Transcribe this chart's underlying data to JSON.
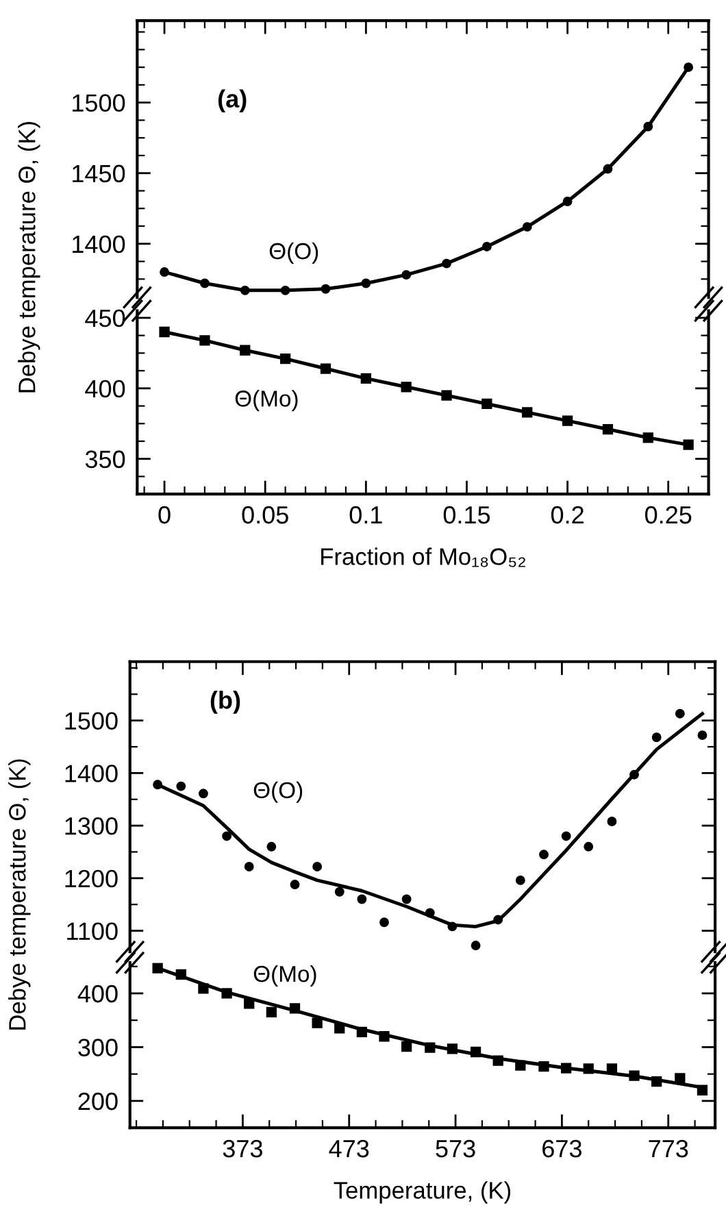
{
  "chart_data": [
    {
      "type": "line",
      "ylabel": "Debye temperature Θ, (K)",
      "tick_labels": "y",
      "marker": "circle",
      "line_style": "solid",
      "grid": false,
      "legend": false,
      "annotations": [
        "(a)",
        "Θ(O)"
      ],
      "x": [
        0,
        0.02,
        0.04,
        0.06,
        0.08,
        0.1,
        0.12,
        0.14,
        0.16,
        0.18,
        0.2,
        0.22,
        0.24,
        0.26
      ],
      "series": [
        {
          "color": "#000000",
          "values": [
            1380,
            1372,
            1367,
            1367,
            1368,
            1372,
            1378,
            1386,
            1398,
            1412,
            1430,
            1453,
            1483,
            1525
          ]
        }
      ],
      "xlim": [
        -0.0135,
        0.27
      ],
      "ylim": [
        1362,
        1558
      ],
      "xticks": [
        {
          "value": -0.01,
          "label": null
        },
        0,
        {
          "value": 0.01,
          "label": null
        },
        {
          "value": 0.02,
          "label": null
        },
        {
          "value": 0.03,
          "label": null
        },
        {
          "value": 0.04,
          "label": null
        },
        0.05,
        {
          "value": 0.06,
          "label": null
        },
        {
          "value": 0.07,
          "label": null
        },
        {
          "value": 0.08,
          "label": null
        },
        {
          "value": 0.09,
          "label": null
        },
        0.1,
        {
          "value": 0.11,
          "label": null
        },
        {
          "value": 0.12,
          "label": null
        },
        {
          "value": 0.13,
          "label": null
        },
        {
          "value": 0.14,
          "label": null
        },
        0.15,
        {
          "value": 0.16,
          "label": null
        },
        {
          "value": 0.17,
          "label": null
        },
        {
          "value": 0.18,
          "label": null
        },
        {
          "value": 0.19,
          "label": null
        },
        0.2,
        {
          "value": 0.21,
          "label": null
        },
        {
          "value": 0.22,
          "label": null
        },
        {
          "value": 0.23,
          "label": null
        },
        {
          "value": 0.24,
          "label": null
        },
        0.25,
        {
          "value": 0.26,
          "label": null
        }
      ],
      "yticks": [
        {
          "value": 1375,
          "label": null
        },
        {
          "value": 1387.5,
          "label": null
        },
        1400,
        {
          "value": 1412.5,
          "label": null
        },
        {
          "value": 1425,
          "label": null
        },
        {
          "value": 1437.5,
          "label": null
        },
        1450,
        {
          "value": 1462.5,
          "label": null
        },
        {
          "value": 1475,
          "label": null
        },
        {
          "value": 1487.5,
          "label": null
        },
        1500,
        {
          "value": 1512.5,
          "label": null
        },
        {
          "value": 1525,
          "label": null
        },
        {
          "value": 1537.5,
          "label": null
        },
        {
          "value": 1550,
          "label": null
        }
      ]
    },
    {
      "type": "line",
      "xlabel": "Fraction of Mo₁₈O₅₂",
      "marker": "square",
      "line_style": "solid",
      "grid": false,
      "legend": false,
      "annotations": [
        "Θ(Mo)"
      ],
      "x": [
        0,
        0.02,
        0.04,
        0.06,
        0.08,
        0.1,
        0.12,
        0.14,
        0.16,
        0.18,
        0.2,
        0.22,
        0.24,
        0.26
      ],
      "series": [
        {
          "color": "#000000",
          "values": [
            440,
            434,
            427,
            421,
            414,
            407,
            401,
            395,
            389,
            383,
            377,
            371,
            365,
            360
          ]
        }
      ],
      "xlim": [
        -0.0135,
        0.27
      ],
      "ylim": [
        325,
        455
      ],
      "xticks": [
        {
          "value": -0.01,
          "label": null
        },
        0,
        {
          "value": 0.01,
          "label": null
        },
        {
          "value": 0.02,
          "label": null
        },
        {
          "value": 0.03,
          "label": null
        },
        {
          "value": 0.04,
          "label": null
        },
        0.05,
        {
          "value": 0.06,
          "label": null
        },
        {
          "value": 0.07,
          "label": null
        },
        {
          "value": 0.08,
          "label": null
        },
        {
          "value": 0.09,
          "label": null
        },
        0.1,
        {
          "value": 0.11,
          "label": null
        },
        {
          "value": 0.12,
          "label": null
        },
        {
          "value": 0.13,
          "label": null
        },
        {
          "value": 0.14,
          "label": null
        },
        0.15,
        {
          "value": 0.16,
          "label": null
        },
        {
          "value": 0.17,
          "label": null
        },
        {
          "value": 0.18,
          "label": null
        },
        {
          "value": 0.19,
          "label": null
        },
        0.2,
        {
          "value": 0.21,
          "label": null
        },
        {
          "value": 0.22,
          "label": null
        },
        {
          "value": 0.23,
          "label": null
        },
        {
          "value": 0.24,
          "label": null
        },
        0.25,
        {
          "value": 0.26,
          "label": null
        }
      ],
      "yticks": [
        {
          "value": 337.5,
          "label": null
        },
        350,
        {
          "value": 362.5,
          "label": null
        },
        {
          "value": 375,
          "label": null
        },
        {
          "value": 387.5,
          "label": null
        },
        400,
        {
          "value": 412.5,
          "label": null
        },
        {
          "value": 425,
          "label": null
        },
        {
          "value": 437.5,
          "label": null
        },
        450
      ]
    },
    {
      "type": "scatter",
      "ylabel": "Debye temperature Θ, (K)",
      "tick_labels": "y",
      "marker": "circle",
      "grid": false,
      "legend": false,
      "annotations": [
        "(b)",
        "Θ(O)"
      ],
      "x": [
        293,
        315,
        336,
        358,
        379,
        400,
        422,
        443,
        464,
        485,
        506,
        527,
        549,
        570,
        592,
        613,
        634,
        656,
        677,
        698,
        720,
        741,
        762,
        784,
        805
      ],
      "series": [
        {
          "color": "#000000",
          "values": [
            1378,
            1375,
            1361,
            1280,
            1222,
            1260,
            1188,
            1222,
            1174,
            1160,
            1116,
            1160,
            1134,
            1108,
            1072,
            1121,
            1196,
            1245,
            1280,
            1260,
            1308,
            1397,
            1468,
            1513,
            1472
          ]
        },
        {
          "type": "line",
          "color": "#000000",
          "marker": "none",
          "line_style": "solid",
          "x": [
            293,
            336,
            358,
            379,
            400,
            422,
            443,
            485,
            527,
            570,
            592,
            613,
            634,
            677,
            720,
            762,
            805
          ],
          "values": [
            1378,
            1338,
            1296,
            1255,
            1230,
            1212,
            1196,
            1176,
            1146,
            1111,
            1108,
            1119,
            1160,
            1253,
            1351,
            1445,
            1513
          ]
        }
      ],
      "xlim": [
        267,
        817
      ],
      "ylim": [
        1060,
        1612
      ],
      "xticks": [
        {
          "value": 273,
          "label": null
        },
        {
          "value": 298,
          "label": null
        },
        {
          "value": 323,
          "label": null
        },
        {
          "value": 348,
          "label": null
        },
        373,
        {
          "value": 398,
          "label": null
        },
        {
          "value": 423,
          "label": null
        },
        {
          "value": 448,
          "label": null
        },
        473,
        {
          "value": 498,
          "label": null
        },
        {
          "value": 523,
          "label": null
        },
        {
          "value": 548,
          "label": null
        },
        573,
        {
          "value": 598,
          "label": null
        },
        {
          "value": 623,
          "label": null
        },
        {
          "value": 648,
          "label": null
        },
        673,
        {
          "value": 698,
          "label": null
        },
        {
          "value": 723,
          "label": null
        },
        {
          "value": 748,
          "label": null
        },
        773,
        {
          "value": 798,
          "label": null
        }
      ],
      "yticks": [
        1100,
        {
          "value": 1150,
          "label": null
        },
        1200,
        {
          "value": 1250,
          "label": null
        },
        1300,
        {
          "value": 1350,
          "label": null
        },
        1400,
        {
          "value": 1450,
          "label": null
        },
        1500,
        {
          "value": 1550,
          "label": null
        },
        {
          "value": 1600,
          "label": null
        }
      ]
    },
    {
      "type": "scatter",
      "xlabel": "Temperature, (K)",
      "marker": "square",
      "grid": false,
      "legend": false,
      "annotations": [
        "Θ(Mo)"
      ],
      "x": [
        293,
        315,
        336,
        358,
        379,
        400,
        422,
        443,
        464,
        485,
        506,
        527,
        549,
        570,
        592,
        613,
        634,
        656,
        677,
        698,
        720,
        741,
        762,
        784,
        805
      ],
      "series": [
        {
          "color": "#000000",
          "values": [
            447,
            435,
            409,
            400,
            381,
            365,
            372,
            345,
            335,
            328,
            320,
            301,
            299,
            297,
            291,
            275,
            266,
            264,
            261,
            260,
            260,
            247,
            236,
            242,
            220
          ]
        },
        {
          "type": "line",
          "color": "#000000",
          "marker": "none",
          "line_style": "solid",
          "x": [
            293,
            358,
            422,
            485,
            549,
            613,
            677,
            741,
            805
          ],
          "values": [
            447,
            402,
            368,
            333,
            303,
            279,
            261,
            246,
            225
          ]
        }
      ],
      "xlim": [
        267,
        817
      ],
      "ylim": [
        150,
        457
      ],
      "xticks": [
        {
          "value": 273,
          "label": null
        },
        {
          "value": 298,
          "label": null
        },
        {
          "value": 323,
          "label": null
        },
        {
          "value": 348,
          "label": null
        },
        373,
        {
          "value": 398,
          "label": null
        },
        {
          "value": 423,
          "label": null
        },
        {
          "value": 448,
          "label": null
        },
        473,
        {
          "value": 498,
          "label": null
        },
        {
          "value": 523,
          "label": null
        },
        {
          "value": 548,
          "label": null
        },
        573,
        {
          "value": 598,
          "label": null
        },
        {
          "value": 623,
          "label": null
        },
        {
          "value": 648,
          "label": null
        },
        673,
        {
          "value": 698,
          "label": null
        },
        {
          "value": 723,
          "label": null
        },
        {
          "value": 748,
          "label": null
        },
        773,
        {
          "value": 798,
          "label": null
        }
      ],
      "yticks": [
        200,
        {
          "value": 250,
          "label": null
        },
        300,
        {
          "value": 350,
          "label": null
        },
        400,
        {
          "value": 450,
          "label": null
        }
      ]
    }
  ]
}
